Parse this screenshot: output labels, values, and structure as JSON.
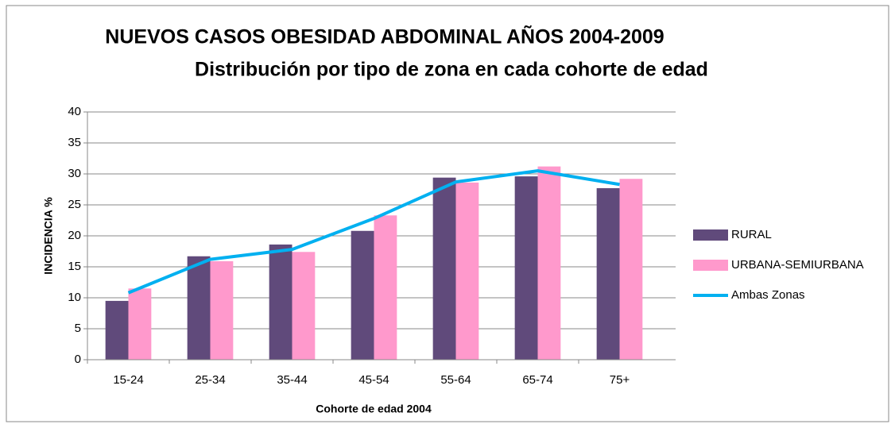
{
  "chart_data": {
    "type": "bar",
    "title": "NUEVOS CASOS OBESIDAD ABDOMINAL  AÑOS 2004-2009",
    "subtitle": "Distribución por tipo de zona en cada cohorte de edad",
    "x_label": "Cohorte de edad 2004",
    "y_label": "INCIDENCIA %",
    "categories": [
      "15-24",
      "25-34",
      "35-44",
      "45-54",
      "55-64",
      "65-74",
      "75+"
    ],
    "series": [
      {
        "name": "RURAL",
        "type": "bar",
        "color": "#604a7b",
        "values": [
          9.5,
          16.7,
          18.6,
          20.8,
          29.4,
          29.6,
          27.7
        ]
      },
      {
        "name": "URBANA-SEMIURBANA",
        "type": "bar",
        "color": "#ff99cc",
        "values": [
          11.5,
          15.9,
          17.4,
          23.3,
          28.6,
          31.2,
          29.2
        ]
      },
      {
        "name": "Ambas Zonas",
        "type": "line",
        "color": "#00b0f0",
        "values": [
          10.8,
          16.2,
          17.8,
          22.8,
          28.7,
          30.5,
          28.3
        ]
      }
    ],
    "ylim": [
      0,
      40
    ],
    "yticks": [
      0,
      5,
      10,
      15,
      20,
      25,
      30,
      35,
      40
    ],
    "grid": true,
    "legend": "right"
  }
}
